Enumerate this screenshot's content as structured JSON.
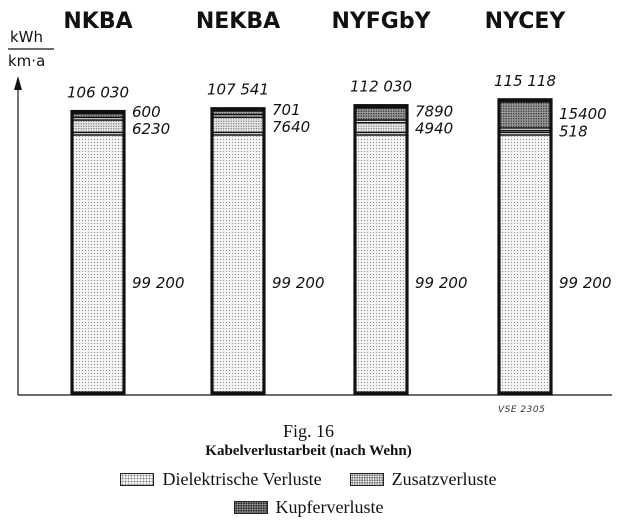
{
  "chart_data": {
    "type": "bar",
    "stacked": true,
    "title": "Kabelverlustarbeit (nach Wehn)",
    "figure_label": "Fig. 16",
    "ylabel_top": "kWh",
    "ylabel_bottom": "km·a",
    "ylim": [
      0,
      120000
    ],
    "categories": [
      "NKBA",
      "NEKBA",
      "NYFGbY",
      "NYCEY"
    ],
    "totals": [
      "106 030",
      "107 541",
      "112 030",
      "115 118"
    ],
    "series": [
      {
        "name": "Dielektrische Verluste",
        "values": [
          99200,
          99200,
          99200,
          99200
        ],
        "labels": [
          "99 200",
          "99 200",
          "99 200",
          "99 200"
        ],
        "pattern": "dots"
      },
      {
        "name": "Zusatzverluste",
        "values": [
          6230,
          7640,
          4940,
          518
        ],
        "labels": [
          "6230",
          "7640",
          "4940",
          "518"
        ],
        "pattern": "dense"
      },
      {
        "name": "Kupferverluste",
        "values": [
          600,
          701,
          7890,
          15400
        ],
        "labels": [
          "600",
          "701",
          "7890",
          "15400"
        ],
        "pattern": "dark"
      }
    ],
    "source_code": "VSE 2305",
    "grid": false,
    "legend_position": "bottom"
  }
}
